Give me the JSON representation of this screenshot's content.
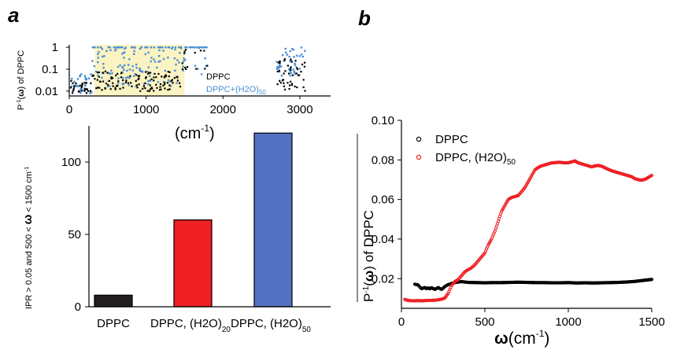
{
  "panels": {
    "a_label": "a",
    "b_label": "b"
  },
  "chart_data": [
    {
      "id": "a-top",
      "type": "scatter",
      "x_ticks": [
        "0",
        "1000",
        "2000",
        "3000"
      ],
      "y_ticks": [
        "1",
        "0.1",
        "0.01"
      ],
      "xlim": [
        0,
        3400
      ],
      "ylim": [
        0.006,
        1.3
      ],
      "yscale": "log",
      "xlabel": "(cm",
      "xlabel_sup": "-1",
      "xlabel_tail": ")",
      "ylabel_pre": "P",
      "ylabel_sup": "-1",
      "ylabel_mid": "(",
      "ylabel_bold": "ω",
      "ylabel_post": ") of DPPC",
      "highlight_range": [
        330,
        1500
      ],
      "highlight_color": "#fbf3c2",
      "legend": [
        {
          "text": "DPPC",
          "color": "#000000"
        },
        {
          "text": "DPPC+(H2O)",
          "sub": "50",
          "color": "#4a8fd4"
        }
      ],
      "series": [
        {
          "name": "DPPC",
          "color": "#000000"
        },
        {
          "name": "DPPC+(H2O)50",
          "color": "#4a8fd4"
        }
      ]
    },
    {
      "id": "a-bottom",
      "type": "bar",
      "categories": [
        {
          "text": "DPPC",
          "sub": ""
        },
        {
          "text": "DPPC, (H2O)",
          "sub": "20"
        },
        {
          "text": "DPPC, (H2O)",
          "sub": "50"
        }
      ],
      "values": [
        8,
        60,
        120
      ],
      "colors": [
        "#231f20",
        "#ee2024",
        "#5470c1"
      ],
      "ylim": [
        0,
        125
      ],
      "y_ticks": [
        "0",
        "50",
        "100"
      ],
      "ylabel_pre": "IPR > 0.05 and 500 < ",
      "ylabel_bold": "ω",
      "ylabel_post": " < 1500 cm",
      "ylabel_sup": "-1"
    },
    {
      "id": "b",
      "type": "scatter",
      "xlim": [
        0,
        1500
      ],
      "ylim": [
        0.005,
        0.1
      ],
      "x_ticks": [
        "0",
        "500",
        "1000",
        "1500"
      ],
      "y_ticks": [
        "0.02",
        "0.04",
        "0.06",
        "0.08",
        "0.10"
      ],
      "xlabel_bold": "ω",
      "xlabel_rest": "(cm",
      "xlabel_sup": "-1",
      "xlabel_tail": ")",
      "ylabel_pre": "P",
      "ylabel_sup": "-1",
      "ylabel_mid": "(",
      "ylabel_bold": "ω",
      "ylabel_post": ") of DPPC",
      "legend": [
        {
          "text": "DPPC",
          "color": "#000000"
        },
        {
          "text": "DPPC, (H2O)",
          "sub": "50",
          "color": "#ee2024"
        }
      ],
      "series": [
        {
          "name": "DPPC",
          "color": "#000000",
          "points": [
            [
              80,
              0.0172
            ],
            [
              90,
              0.017
            ],
            [
              100,
              0.0168
            ],
            [
              110,
              0.0158
            ],
            [
              120,
              0.015
            ],
            [
              130,
              0.0152
            ],
            [
              140,
              0.0155
            ],
            [
              150,
              0.015
            ],
            [
              160,
              0.0153
            ],
            [
              170,
              0.0149
            ],
            [
              180,
              0.0154
            ],
            [
              190,
              0.015
            ],
            [
              200,
              0.0146
            ],
            [
              210,
              0.015
            ],
            [
              220,
              0.0155
            ],
            [
              230,
              0.015
            ],
            [
              240,
              0.0146
            ],
            [
              250,
              0.0152
            ],
            [
              260,
              0.016
            ],
            [
              270,
              0.0165
            ],
            [
              280,
              0.017
            ],
            [
              290,
              0.0172
            ],
            [
              300,
              0.0176
            ],
            [
              320,
              0.018
            ],
            [
              340,
              0.0183
            ],
            [
              360,
              0.0185
            ],
            [
              380,
              0.0183
            ],
            [
              400,
              0.0181
            ],
            [
              450,
              0.018
            ],
            [
              500,
              0.0179
            ],
            [
              550,
              0.018
            ],
            [
              600,
              0.018
            ],
            [
              650,
              0.0181
            ],
            [
              700,
              0.0182
            ],
            [
              750,
              0.0181
            ],
            [
              800,
              0.018
            ],
            [
              850,
              0.018
            ],
            [
              900,
              0.0179
            ],
            [
              950,
              0.0179
            ],
            [
              1000,
              0.018
            ],
            [
              1050,
              0.0178
            ],
            [
              1100,
              0.0179
            ],
            [
              1150,
              0.0178
            ],
            [
              1200,
              0.0179
            ],
            [
              1250,
              0.018
            ],
            [
              1300,
              0.0181
            ],
            [
              1350,
              0.0183
            ],
            [
              1400,
              0.0186
            ],
            [
              1450,
              0.0191
            ],
            [
              1500,
              0.0196
            ]
          ]
        },
        {
          "name": "DPPC, (H2O)50",
          "color": "#ee2024",
          "points": [
            [
              20,
              0.0095
            ],
            [
              40,
              0.009
            ],
            [
              60,
              0.0088
            ],
            [
              80,
              0.0088
            ],
            [
              100,
              0.0089
            ],
            [
              120,
              0.0088
            ],
            [
              140,
              0.0089
            ],
            [
              160,
              0.009
            ],
            [
              180,
              0.009
            ],
            [
              200,
              0.0091
            ],
            [
              220,
              0.0093
            ],
            [
              240,
              0.0096
            ],
            [
              260,
              0.0102
            ],
            [
              280,
              0.0125
            ],
            [
              300,
              0.0165
            ],
            [
              320,
              0.0185
            ],
            [
              340,
              0.0195
            ],
            [
              360,
              0.0215
            ],
            [
              380,
              0.0235
            ],
            [
              400,
              0.0245
            ],
            [
              420,
              0.0255
            ],
            [
              440,
              0.027
            ],
            [
              460,
              0.029
            ],
            [
              480,
              0.031
            ],
            [
              500,
              0.033
            ],
            [
              520,
              0.037
            ],
            [
              540,
              0.04
            ],
            [
              560,
              0.044
            ],
            [
              580,
              0.049
            ],
            [
              600,
              0.054
            ],
            [
              620,
              0.057
            ],
            [
              640,
              0.06
            ],
            [
              660,
              0.061
            ],
            [
              680,
              0.0615
            ],
            [
              700,
              0.062
            ],
            [
              720,
              0.064
            ],
            [
              740,
              0.066
            ],
            [
              760,
              0.069
            ],
            [
              780,
              0.072
            ],
            [
              800,
              0.075
            ],
            [
              820,
              0.0762
            ],
            [
              840,
              0.077
            ],
            [
              860,
              0.0775
            ],
            [
              880,
              0.078
            ],
            [
              900,
              0.0785
            ],
            [
              920,
              0.0786
            ],
            [
              940,
              0.0788
            ],
            [
              960,
              0.0787
            ],
            [
              980,
              0.0785
            ],
            [
              1000,
              0.0786
            ],
            [
              1020,
              0.079
            ],
            [
              1040,
              0.0795
            ],
            [
              1060,
              0.0785
            ],
            [
              1080,
              0.078
            ],
            [
              1100,
              0.0775
            ],
            [
              1120,
              0.077
            ],
            [
              1140,
              0.0765
            ],
            [
              1160,
              0.077
            ],
            [
              1180,
              0.0772
            ],
            [
              1200,
              0.0768
            ],
            [
              1220,
              0.076
            ],
            [
              1240,
              0.0752
            ],
            [
              1260,
              0.0745
            ],
            [
              1280,
              0.074
            ],
            [
              1300,
              0.0735
            ],
            [
              1320,
              0.073
            ],
            [
              1340,
              0.0725
            ],
            [
              1360,
              0.072
            ],
            [
              1380,
              0.0715
            ],
            [
              1400,
              0.0705
            ],
            [
              1420,
              0.07
            ],
            [
              1440,
              0.0698
            ],
            [
              1460,
              0.0702
            ],
            [
              1480,
              0.0712
            ],
            [
              1500,
              0.0722
            ]
          ]
        }
      ]
    }
  ]
}
